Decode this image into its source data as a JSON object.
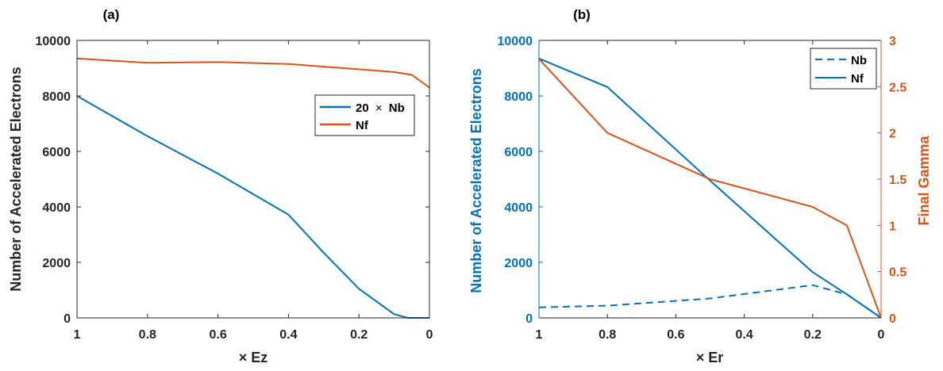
{
  "chart_data": [
    {
      "panel_label": "(a)",
      "type": "line",
      "xlabel": "× Ez",
      "ylabel": "Number of Accelerated Electrons",
      "xlim": [
        1,
        0
      ],
      "ylim": [
        0,
        10000
      ],
      "x_reversed": true,
      "xticks": [
        1,
        0.8,
        0.6,
        0.4,
        0.2,
        0
      ],
      "xtick_labels": [
        "1",
        "0.8",
        "0.6",
        "0.4",
        "0.2",
        "0"
      ],
      "yticks": [
        0,
        2000,
        4000,
        6000,
        8000,
        10000
      ],
      "ytick_labels": [
        "0",
        "2000",
        "4000",
        "6000",
        "8000",
        "10000"
      ],
      "legend_position": "upper-right",
      "series": [
        {
          "name": "20 × Nb",
          "legend_prefix": "20",
          "legend_symbol": "×",
          "legend_suffix": "Nb",
          "color": "#0072BD",
          "dash": "solid",
          "x": [
            1,
            0.8,
            0.6,
            0.4,
            0.3,
            0.2,
            0.1,
            0.06,
            0
          ],
          "values": [
            8000,
            6550,
            5200,
            3720,
            2350,
            1050,
            130,
            0,
            0
          ]
        },
        {
          "name": "Nf",
          "color": "#D95319",
          "dash": "solid",
          "x": [
            1,
            0.8,
            0.6,
            0.4,
            0.2,
            0.1,
            0.05,
            0
          ],
          "values": [
            9350,
            9190,
            9220,
            9150,
            8960,
            8860,
            8760,
            8300
          ]
        }
      ]
    },
    {
      "panel_label": "(b)",
      "type": "line",
      "xlabel": "× Er",
      "ylabel": "Number of Accelerated Electrons",
      "y2label": "Final Gamma",
      "xlim": [
        1,
        0
      ],
      "ylim": [
        0,
        10000
      ],
      "y2lim": [
        0,
        3
      ],
      "x_reversed": true,
      "xticks": [
        1,
        0.8,
        0.6,
        0.4,
        0.2,
        0
      ],
      "xtick_labels": [
        "1",
        "0.8",
        "0.6",
        "0.4",
        "0.2",
        "0"
      ],
      "yticks": [
        0,
        2000,
        4000,
        6000,
        8000,
        10000
      ],
      "ytick_labels": [
        "0",
        "2000",
        "4000",
        "6000",
        "8000",
        "10000"
      ],
      "y2ticks": [
        0,
        0.5,
        1,
        1.5,
        2,
        2.5,
        3
      ],
      "y2tick_labels": [
        "0",
        "0.5",
        "1",
        "1.5",
        "2",
        "2.5",
        "3"
      ],
      "legend_position": "top-right",
      "series": [
        {
          "name": "Nb",
          "color": "#0072BD",
          "dash": "dashed",
          "axis": "left",
          "x": [
            1,
            0.8,
            0.5,
            0.2,
            0.1,
            0
          ],
          "values": [
            380,
            440,
            700,
            1180,
            850,
            0
          ]
        },
        {
          "name": "Nf",
          "color": "#0072BD",
          "dash": "solid",
          "axis": "left",
          "x": [
            1,
            0.8,
            0.5,
            0.2,
            0.1,
            0
          ],
          "values": [
            9350,
            8320,
            4950,
            1650,
            850,
            0
          ]
        },
        {
          "name": "Final Gamma",
          "color": "#D95319",
          "dash": "solid",
          "axis": "right",
          "x": [
            1,
            0.8,
            0.5,
            0.2,
            0.15,
            0.1,
            0
          ],
          "values": [
            2.8,
            2.0,
            1.5,
            1.2,
            1.1,
            1.0,
            0.0
          ]
        }
      ]
    }
  ]
}
